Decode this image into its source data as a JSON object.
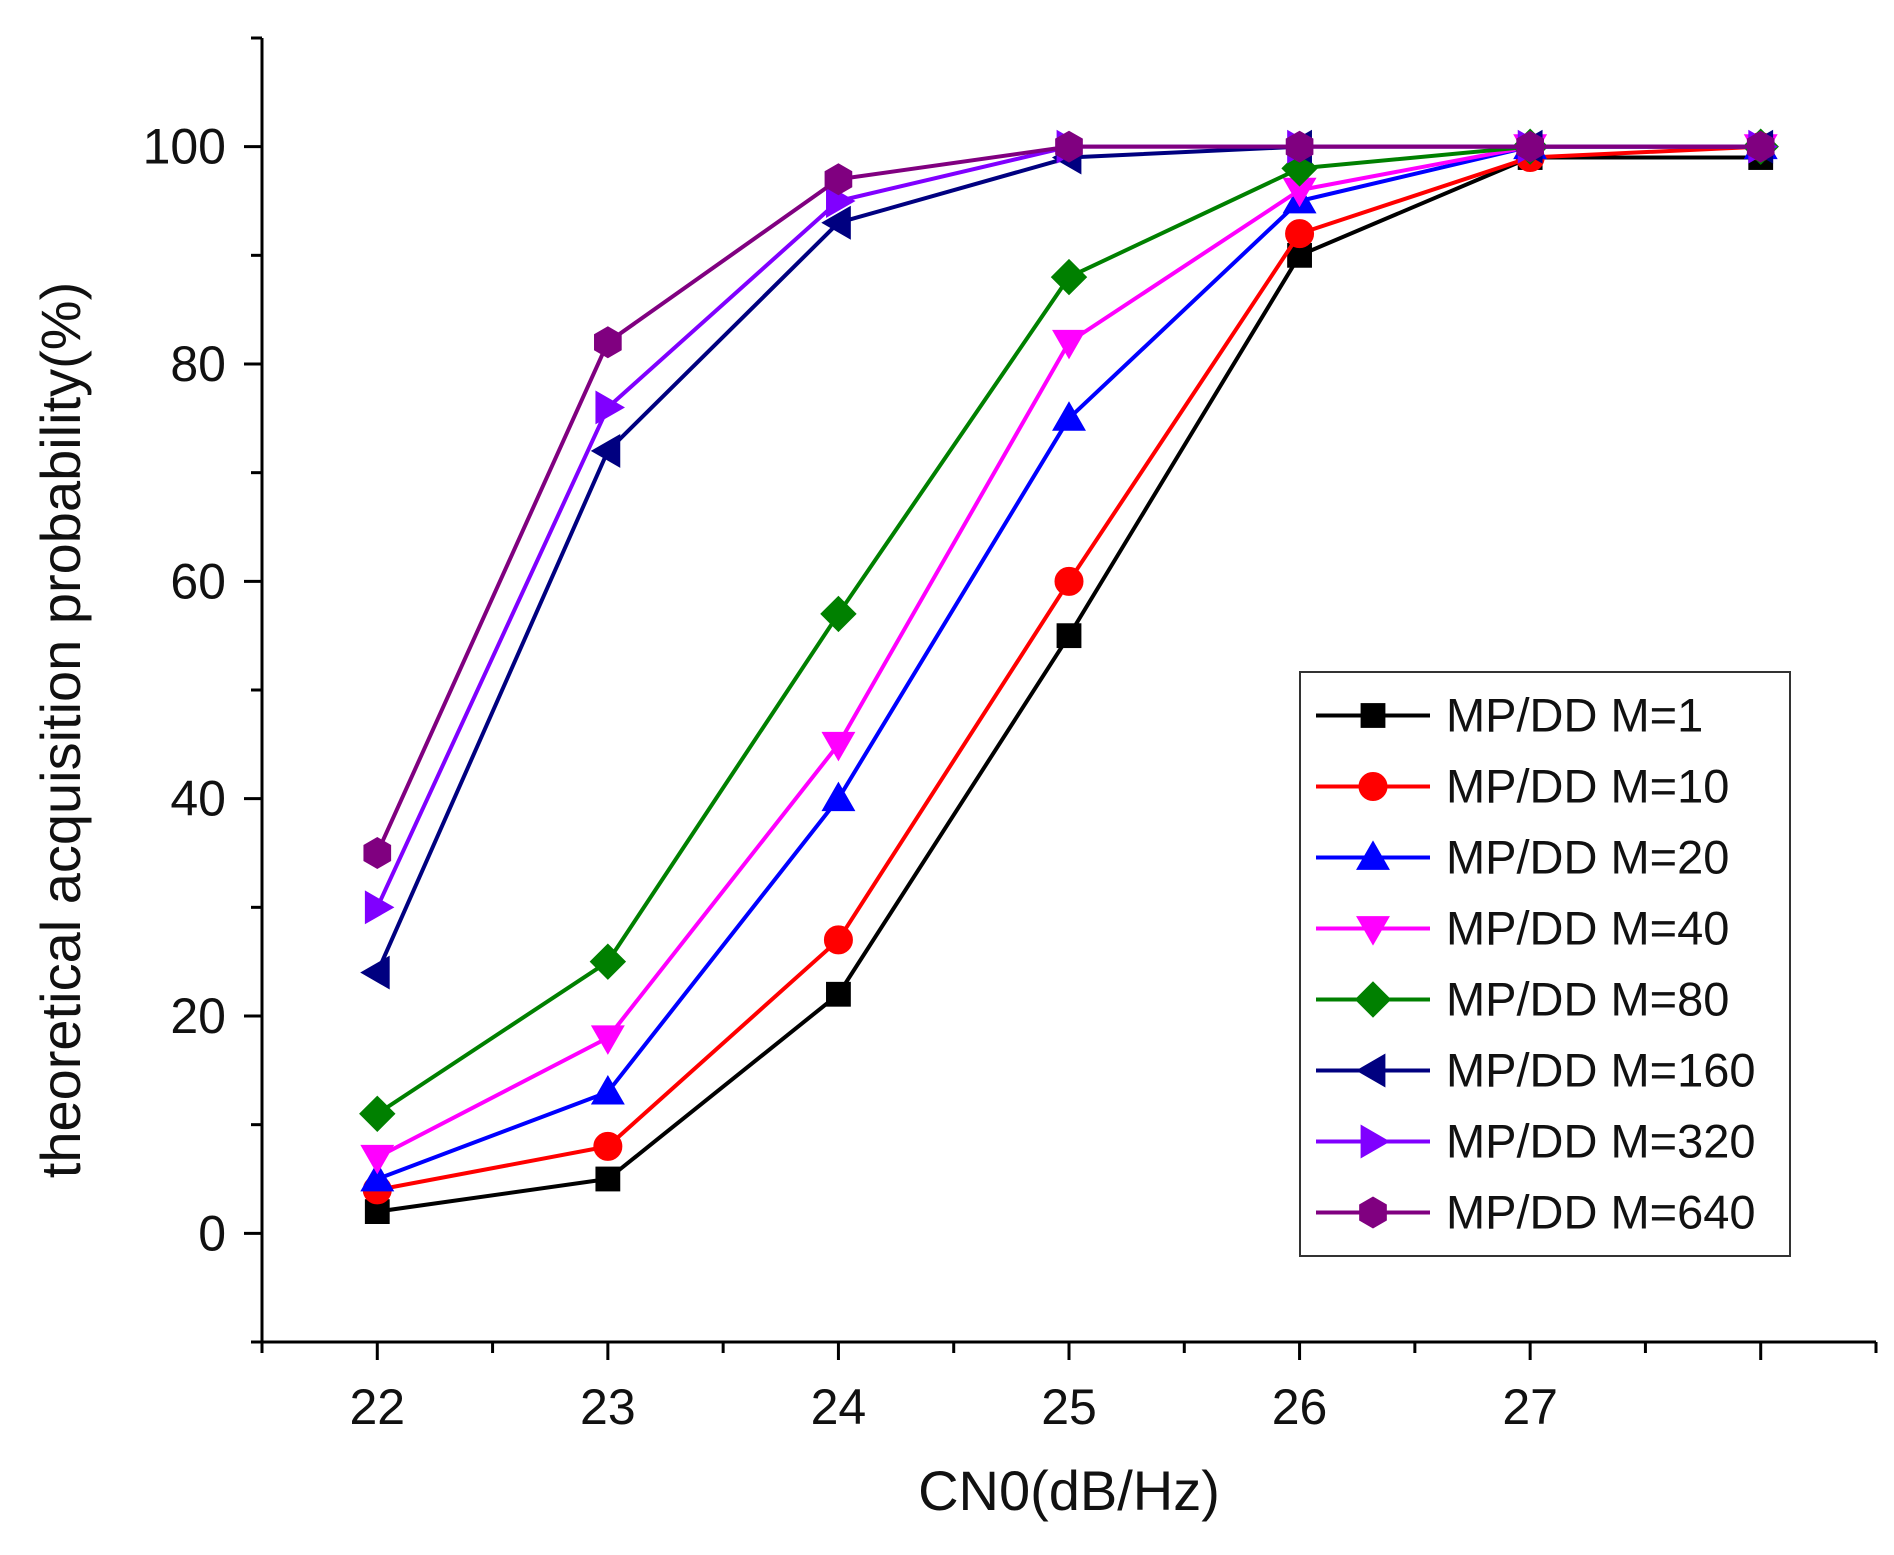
{
  "chart_data": {
    "type": "line",
    "title": "",
    "xlabel": "CN0(dB/Hz)",
    "ylabel": "theoretical acquisition probability(%)",
    "x": [
      22,
      23,
      24,
      25,
      26,
      27,
      28
    ],
    "xticks": [
      22,
      23,
      24,
      25,
      26,
      27
    ],
    "xtick_labels": [
      "22",
      "23",
      "24",
      "25",
      "26",
      "27"
    ],
    "xlim": [
      21.5,
      28.5
    ],
    "yticks": [
      0,
      20,
      40,
      60,
      80,
      100
    ],
    "ytick_labels": [
      "0",
      "20",
      "40",
      "60",
      "80",
      "100"
    ],
    "ylim": [
      -10,
      110
    ],
    "grid": false,
    "legend_position": "lower-right",
    "series": [
      {
        "name": "MP/DD M=1",
        "color": "#000000",
        "marker": "square",
        "values": [
          2,
          5,
          22,
          55,
          90,
          99,
          99
        ]
      },
      {
        "name": "MP/DD M=10",
        "color": "#ff0000",
        "marker": "circle",
        "values": [
          4,
          8,
          27,
          60,
          92,
          99,
          100
        ]
      },
      {
        "name": "MP/DD M=20",
        "color": "#0000ff",
        "marker": "triangle-up",
        "values": [
          5,
          13,
          40,
          75,
          95,
          100,
          100
        ]
      },
      {
        "name": "MP/DD M=40",
        "color": "#ff00ff",
        "marker": "triangle-down",
        "values": [
          7,
          18,
          45,
          82,
          96,
          100,
          100
        ]
      },
      {
        "name": "MP/DD M=80",
        "color": "#008000",
        "marker": "diamond",
        "values": [
          11,
          25,
          57,
          88,
          98,
          100,
          100
        ]
      },
      {
        "name": "MP/DD M=160",
        "color": "#000080",
        "marker": "triangle-left",
        "values": [
          24,
          72,
          93,
          99,
          100,
          100,
          100
        ]
      },
      {
        "name": "MP/DD M=320",
        "color": "#8000ff",
        "marker": "triangle-right",
        "values": [
          30,
          76,
          95,
          100,
          100,
          100,
          100
        ]
      },
      {
        "name": "MP/DD M=640",
        "color": "#800080",
        "marker": "hexagon",
        "values": [
          35,
          82,
          97,
          100,
          100,
          100,
          100
        ]
      }
    ]
  }
}
